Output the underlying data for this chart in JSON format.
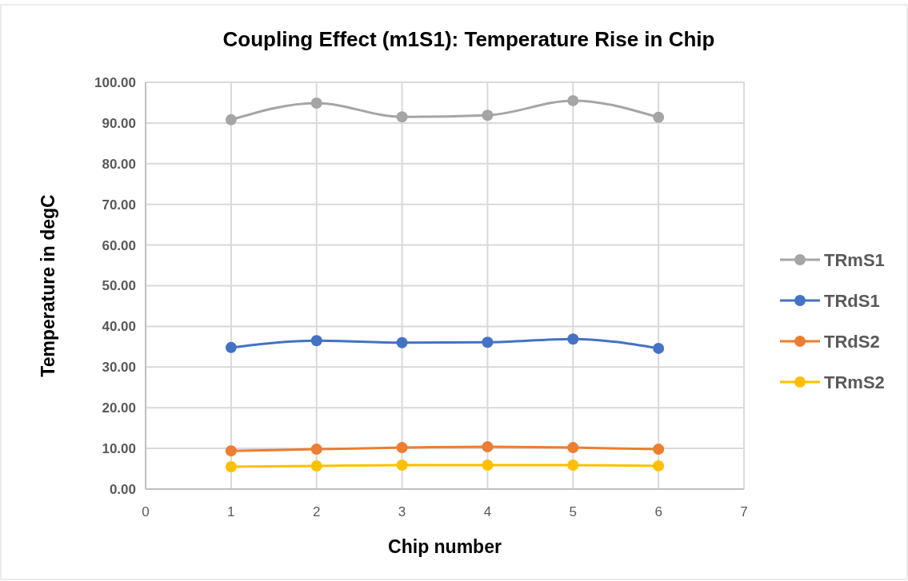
{
  "chart_data": {
    "type": "line",
    "title": "Coupling Effect (m1S1): Temperature Rise in Chip",
    "xlabel": "Chip number",
    "ylabel": "Temperature in degC",
    "x": [
      1,
      2,
      3,
      4,
      5,
      6
    ],
    "xlim": [
      0,
      7
    ],
    "xticks": [
      0,
      1,
      2,
      3,
      4,
      5,
      6,
      7
    ],
    "ylim": [
      0,
      100
    ],
    "yticks": [
      {
        "value": 0,
        "label": "0.00"
      },
      {
        "value": 10,
        "label": "10.00"
      },
      {
        "value": 20,
        "label": "20.00"
      },
      {
        "value": 30,
        "label": "30.00"
      },
      {
        "value": 40,
        "label": "40.00"
      },
      {
        "value": 50,
        "label": "50.00"
      },
      {
        "value": 60,
        "label": "60.00"
      },
      {
        "value": 70,
        "label": "70.00"
      },
      {
        "value": 80,
        "label": "80.00"
      },
      {
        "value": 90,
        "label": "90.00"
      },
      {
        "value": 100,
        "label": "100.00"
      }
    ],
    "grid": true,
    "legend": "right",
    "marker": "circle",
    "line_style": "solid",
    "series": [
      {
        "name": "TRmS1",
        "color": "#a5a5a5",
        "values": [
          90.8,
          94.9,
          91.5,
          91.9,
          95.5,
          91.4
        ]
      },
      {
        "name": "TRdS1",
        "color": "#4472c4",
        "values": [
          34.8,
          36.5,
          36.0,
          36.1,
          36.9,
          34.6
        ]
      },
      {
        "name": "TRdS2",
        "color": "#ed7d31",
        "values": [
          9.4,
          9.8,
          10.2,
          10.4,
          10.2,
          9.8
        ]
      },
      {
        "name": "TRmS2",
        "color": "#ffc000",
        "values": [
          5.5,
          5.7,
          5.9,
          5.9,
          5.9,
          5.7
        ]
      }
    ]
  }
}
